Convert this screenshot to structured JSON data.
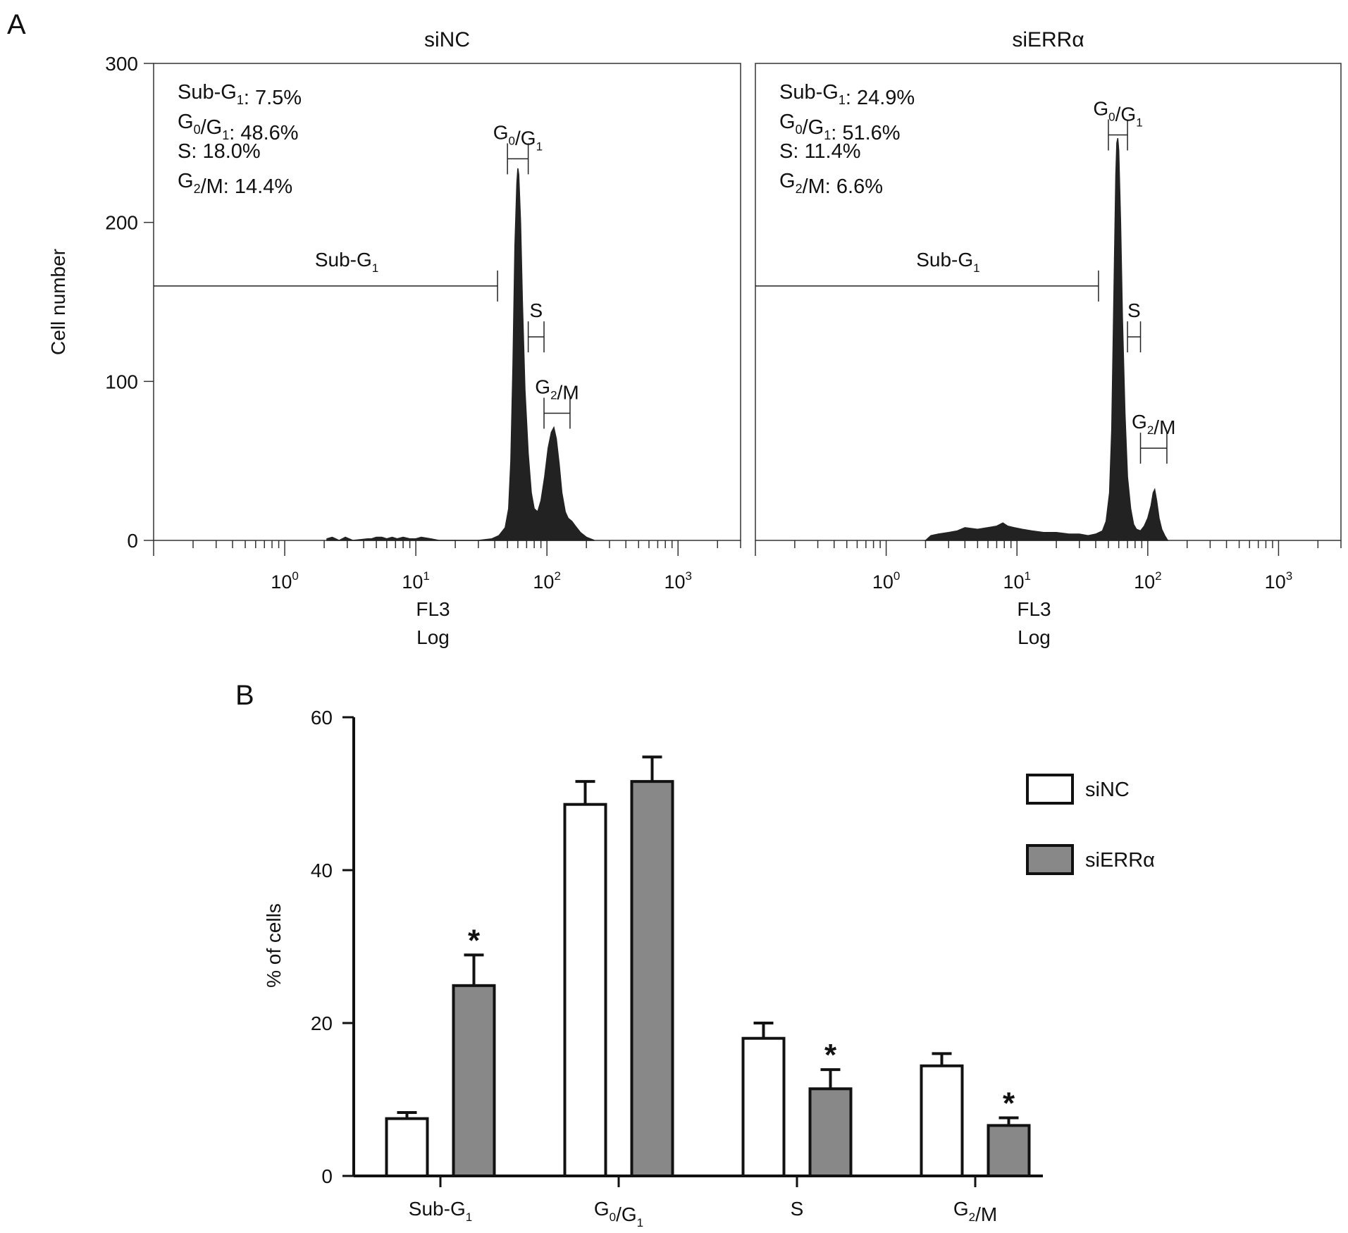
{
  "panel_labels": {
    "a": "A",
    "b": "B"
  },
  "chart_data": [
    {
      "type": "area",
      "panel": "A",
      "title": "siNC",
      "xlabel": "FL3",
      "xlabel2": "Log",
      "ylabel": "Cell number",
      "x_scale": "log",
      "xlim": [
        0.1,
        3000
      ],
      "ylim": [
        0,
        300
      ],
      "y_ticks": [
        "0",
        "100",
        "200",
        "300"
      ],
      "x_ticks": [
        {
          "base": "10",
          "exp": "0",
          "value": 1
        },
        {
          "base": "10",
          "exp": "1",
          "value": 10
        },
        {
          "base": "10",
          "exp": "2",
          "value": 100
        },
        {
          "base": "10",
          "exp": "3",
          "value": 1000
        }
      ],
      "stats": [
        {
          "text": "Sub-G",
          "sub": "1",
          "tail": ": 7.5%"
        },
        {
          "text": "G",
          "sub": "0",
          "mid": "/G",
          "sub2": "1",
          "tail": ": 48.6%"
        },
        {
          "text": "S: 18.0%"
        },
        {
          "text": "G",
          "sub": "2",
          "tail": "/M: 14.4%"
        }
      ],
      "gates": [
        {
          "label": "Sub-G",
          "sub": "1",
          "range": [
            0.1,
            42
          ],
          "y": 160
        },
        {
          "label": "G",
          "sub": "0",
          "mid": "/G",
          "sub2": "1",
          "range": [
            50,
            72
          ],
          "y": 240
        },
        {
          "label": "S",
          "range": [
            72,
            95
          ],
          "y": 128
        },
        {
          "label": "G",
          "sub": "2",
          "tail": "/M",
          "range": [
            95,
            150
          ],
          "y": 80
        }
      ],
      "histogram": [
        [
          2.1,
          1
        ],
        [
          2.3,
          2
        ],
        [
          2.6,
          0
        ],
        [
          2.9,
          2
        ],
        [
          3.3,
          0
        ],
        [
          4.3,
          1
        ],
        [
          4.6,
          1
        ],
        [
          5,
          2
        ],
        [
          5.5,
          2
        ],
        [
          6,
          1
        ],
        [
          6.6,
          2
        ],
        [
          7.2,
          1
        ],
        [
          8,
          2
        ],
        [
          9,
          1
        ],
        [
          10,
          1
        ],
        [
          11,
          2
        ],
        [
          13,
          1
        ],
        [
          15,
          0
        ],
        [
          30,
          0
        ],
        [
          38,
          1
        ],
        [
          43,
          3
        ],
        [
          48,
          8
        ],
        [
          51,
          20
        ],
        [
          53,
          50
        ],
        [
          55,
          110
        ],
        [
          57,
          185
        ],
        [
          59,
          225
        ],
        [
          60,
          234
        ],
        [
          61,
          230
        ],
        [
          63,
          200
        ],
        [
          65,
          150
        ],
        [
          68,
          95
        ],
        [
          72,
          55
        ],
        [
          76,
          30
        ],
        [
          80,
          20
        ],
        [
          85,
          18
        ],
        [
          90,
          25
        ],
        [
          96,
          40
        ],
        [
          102,
          58
        ],
        [
          108,
          68
        ],
        [
          113,
          71
        ],
        [
          118,
          64
        ],
        [
          124,
          48
        ],
        [
          130,
          30
        ],
        [
          138,
          18
        ],
        [
          145,
          14
        ],
        [
          155,
          12
        ],
        [
          165,
          9
        ],
        [
          180,
          5
        ],
        [
          200,
          2
        ],
        [
          230,
          0
        ]
      ]
    },
    {
      "type": "area",
      "panel": "A",
      "title": "siERRα",
      "xlabel": "FL3",
      "xlabel2": "Log",
      "x_scale": "log",
      "xlim": [
        0.1,
        3000
      ],
      "ylim": [
        0,
        300
      ],
      "x_ticks": [
        {
          "base": "10",
          "exp": "0",
          "value": 1
        },
        {
          "base": "10",
          "exp": "1",
          "value": 10
        },
        {
          "base": "10",
          "exp": "2",
          "value": 100
        },
        {
          "base": "10",
          "exp": "3",
          "value": 1000
        }
      ],
      "stats": [
        {
          "text": "Sub-G",
          "sub": "1",
          "tail": ": 24.9%"
        },
        {
          "text": "G",
          "sub": "0",
          "mid": "/G",
          "sub2": "1",
          "tail": ": 51.6%"
        },
        {
          "text": "S: 11.4%"
        },
        {
          "text": "G",
          "sub": "2",
          "tail": "/M: 6.6%"
        }
      ],
      "gates": [
        {
          "label": "Sub-G",
          "sub": "1",
          "range": [
            0.1,
            42
          ],
          "y": 160
        },
        {
          "label": "G",
          "sub": "0",
          "mid": "/G",
          "sub2": "1",
          "range": [
            50,
            70
          ],
          "y": 255
        },
        {
          "label": "S",
          "range": [
            70,
            88
          ],
          "y": 128
        },
        {
          "label": "G",
          "sub": "2",
          "tail": "/M",
          "range": [
            88,
            140
          ],
          "y": 58
        }
      ],
      "histogram": [
        [
          2,
          0
        ],
        [
          2.2,
          3
        ],
        [
          2.5,
          4
        ],
        [
          3,
          5
        ],
        [
          3.5,
          6
        ],
        [
          4,
          8
        ],
        [
          5,
          7
        ],
        [
          6,
          8
        ],
        [
          7,
          9
        ],
        [
          7.8,
          11
        ],
        [
          8.5,
          9
        ],
        [
          9.5,
          8
        ],
        [
          11,
          7
        ],
        [
          13,
          6
        ],
        [
          16,
          5
        ],
        [
          20,
          5
        ],
        [
          25,
          4
        ],
        [
          30,
          4
        ],
        [
          35,
          3
        ],
        [
          40,
          4
        ],
        [
          45,
          6
        ],
        [
          48,
          12
        ],
        [
          51,
          30
        ],
        [
          53,
          70
        ],
        [
          55,
          150
        ],
        [
          57,
          230
        ],
        [
          58,
          250
        ],
        [
          59,
          253
        ],
        [
          60,
          245
        ],
        [
          62,
          200
        ],
        [
          64,
          140
        ],
        [
          67,
          80
        ],
        [
          70,
          40
        ],
        [
          74,
          20
        ],
        [
          78,
          10
        ],
        [
          82,
          7
        ],
        [
          88,
          6
        ],
        [
          94,
          9
        ],
        [
          100,
          14
        ],
        [
          106,
          22
        ],
        [
          110,
          30
        ],
        [
          113,
          32
        ],
        [
          117,
          25
        ],
        [
          122,
          14
        ],
        [
          128,
          7
        ],
        [
          135,
          3
        ],
        [
          142,
          0
        ]
      ]
    },
    {
      "type": "bar",
      "panel": "B",
      "ylabel": "% of cells",
      "ylim": [
        0,
        60
      ],
      "y_ticks": [
        "0",
        "20",
        "40",
        "60"
      ],
      "categories": [
        {
          "text": "Sub-G",
          "sub": "1",
          "tail": ""
        },
        {
          "text": "G",
          "sub": "0",
          "tail": "/G",
          "sub2": "1"
        },
        {
          "text": "S",
          "sub": "",
          "tail": ""
        },
        {
          "text": "G",
          "sub": "2",
          "tail": "/M"
        }
      ],
      "series": [
        {
          "name": "siNC",
          "color": "#ffffff",
          "values": [
            7.5,
            48.6,
            18.0,
            14.4
          ],
          "errors": [
            0.8,
            3.0,
            2.0,
            1.6
          ],
          "significant": [
            false,
            false,
            false,
            false
          ]
        },
        {
          "name": "siERRα",
          "color": "#888888",
          "values": [
            24.9,
            51.6,
            11.4,
            6.6
          ],
          "errors": [
            4.0,
            3.2,
            2.5,
            1.0
          ],
          "significant": [
            true,
            false,
            true,
            true
          ]
        }
      ],
      "significance_marker": "*",
      "legend_position": "right"
    }
  ]
}
